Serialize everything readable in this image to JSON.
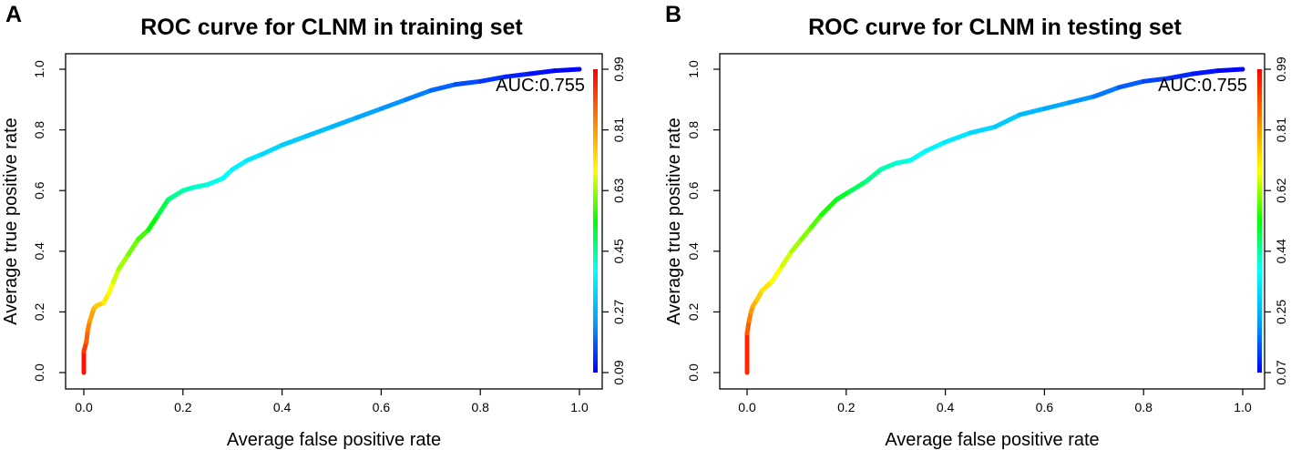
{
  "chart_data": [
    {
      "panel_label": "A",
      "type": "line",
      "title": "ROC curve for CLNM in training set",
      "xlabel": "Average false positive rate",
      "ylabel": "Average true positive rate",
      "xlim": [
        0,
        1
      ],
      "ylim": [
        0,
        1
      ],
      "x_ticks": [
        "0.0",
        "0.2",
        "0.4",
        "0.6",
        "0.8",
        "1.0"
      ],
      "y_ticks": [
        "0.0",
        "0.2",
        "0.4",
        "0.6",
        "0.8",
        "1.0"
      ],
      "annotation": "AUC:0.755",
      "colorbar": {
        "ticks": [
          "0.09",
          "0.27",
          "0.45",
          "0.63",
          "0.81",
          "0.99"
        ],
        "min": 0.09,
        "max": 0.99,
        "colormap": [
          "#0000ff",
          "#00a0ff",
          "#00ffff",
          "#00ff00",
          "#ffff00",
          "#ff8000",
          "#ff0000"
        ]
      },
      "series": [
        {
          "name": "ROC",
          "x": [
            0.0,
            0.0,
            0.005,
            0.008,
            0.012,
            0.02,
            0.025,
            0.04,
            0.05,
            0.06,
            0.07,
            0.09,
            0.11,
            0.13,
            0.15,
            0.17,
            0.18,
            0.2,
            0.22,
            0.25,
            0.28,
            0.3,
            0.33,
            0.36,
            0.4,
            0.45,
            0.5,
            0.55,
            0.6,
            0.65,
            0.7,
            0.75,
            0.8,
            0.85,
            0.9,
            0.95,
            1.0
          ],
          "y": [
            0.0,
            0.07,
            0.1,
            0.14,
            0.17,
            0.21,
            0.22,
            0.23,
            0.26,
            0.3,
            0.34,
            0.39,
            0.44,
            0.47,
            0.52,
            0.57,
            0.58,
            0.6,
            0.61,
            0.62,
            0.64,
            0.67,
            0.7,
            0.72,
            0.75,
            0.78,
            0.81,
            0.84,
            0.87,
            0.9,
            0.93,
            0.95,
            0.96,
            0.975,
            0.985,
            0.995,
            1.0
          ],
          "threshold": [
            0.99,
            0.95,
            0.9,
            0.86,
            0.82,
            0.78,
            0.76,
            0.73,
            0.7,
            0.67,
            0.65,
            0.62,
            0.59,
            0.56,
            0.52,
            0.48,
            0.46,
            0.44,
            0.43,
            0.41,
            0.4,
            0.38,
            0.36,
            0.34,
            0.32,
            0.3,
            0.28,
            0.26,
            0.24,
            0.22,
            0.2,
            0.17,
            0.15,
            0.13,
            0.11,
            0.1,
            0.09
          ]
        }
      ]
    },
    {
      "panel_label": "B",
      "type": "line",
      "title": "ROC curve for CLNM in testing set",
      "xlabel": "Average false positive rate",
      "ylabel": "Average true positive rate",
      "xlim": [
        0,
        1
      ],
      "ylim": [
        0,
        1
      ],
      "x_ticks": [
        "0.0",
        "0.2",
        "0.4",
        "0.6",
        "0.8",
        "1.0"
      ],
      "y_ticks": [
        "0.0",
        "0.2",
        "0.4",
        "0.6",
        "0.8",
        "1.0"
      ],
      "annotation": "AUC:0.755",
      "colorbar": {
        "ticks": [
          "0.07",
          "0.25",
          "0.44",
          "0.62",
          "0.81",
          "0.99"
        ],
        "min": 0.07,
        "max": 0.99,
        "colormap": [
          "#0000ff",
          "#00a0ff",
          "#00ffff",
          "#00ff00",
          "#ffff00",
          "#ff8000",
          "#ff0000"
        ]
      },
      "series": [
        {
          "name": "ROC",
          "x": [
            0.0,
            0.0,
            0.004,
            0.008,
            0.012,
            0.02,
            0.03,
            0.05,
            0.07,
            0.09,
            0.11,
            0.13,
            0.15,
            0.18,
            0.21,
            0.24,
            0.27,
            0.3,
            0.33,
            0.36,
            0.4,
            0.45,
            0.5,
            0.55,
            0.6,
            0.65,
            0.7,
            0.75,
            0.8,
            0.85,
            0.9,
            0.95,
            1.0
          ],
          "y": [
            0.0,
            0.13,
            0.17,
            0.2,
            0.22,
            0.24,
            0.27,
            0.3,
            0.35,
            0.4,
            0.44,
            0.48,
            0.52,
            0.57,
            0.6,
            0.63,
            0.67,
            0.69,
            0.7,
            0.73,
            0.76,
            0.79,
            0.81,
            0.85,
            0.87,
            0.89,
            0.91,
            0.94,
            0.96,
            0.97,
            0.985,
            0.995,
            1.0
          ],
          "threshold": [
            0.99,
            0.9,
            0.86,
            0.82,
            0.79,
            0.76,
            0.73,
            0.7,
            0.67,
            0.64,
            0.62,
            0.59,
            0.56,
            0.52,
            0.49,
            0.46,
            0.43,
            0.41,
            0.39,
            0.37,
            0.35,
            0.33,
            0.3,
            0.28,
            0.25,
            0.23,
            0.2,
            0.17,
            0.15,
            0.12,
            0.1,
            0.08,
            0.07
          ]
        }
      ]
    }
  ]
}
